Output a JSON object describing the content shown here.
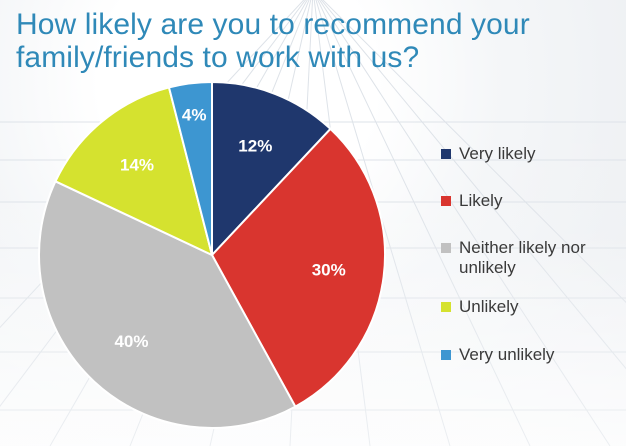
{
  "title": "How likely are you to recommend your family/friends to work with us?",
  "chart_data": {
    "type": "pie",
    "categories": [
      "Very likely",
      "Likely",
      "Neither likely nor unlikely",
      "Unlikely",
      "Very unlikely"
    ],
    "values": [
      12,
      30,
      40,
      14,
      4
    ],
    "labels": [
      "12%",
      "30%",
      "40%",
      "14%",
      "4%"
    ],
    "colors": [
      "#1f376d",
      "#d9352f",
      "#c1c1c1",
      "#d5e22f",
      "#3d96d1"
    ],
    "legend_position": "right"
  }
}
